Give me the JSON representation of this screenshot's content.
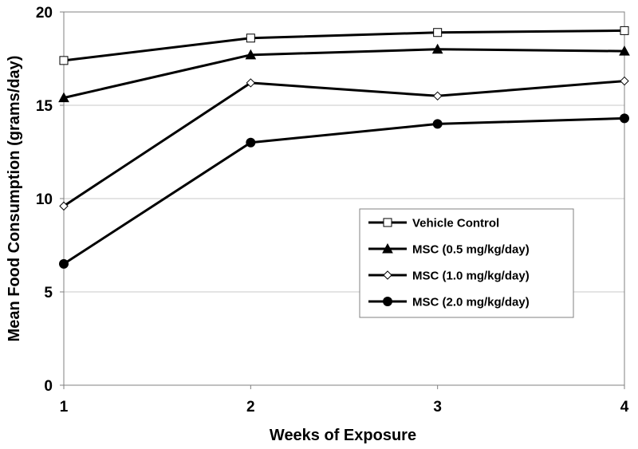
{
  "chart_data": {
    "type": "line",
    "title": "",
    "xlabel": "Weeks of Exposure",
    "ylabel": "Mean Food Consumption (grams/day)",
    "x": [
      1,
      2,
      3,
      4
    ],
    "x_ticks": [
      "1",
      "2",
      "3",
      "4"
    ],
    "xlim": [
      1,
      4
    ],
    "ylim": [
      0,
      20
    ],
    "y_ticks": [
      "0",
      "5",
      "10",
      "15",
      "20"
    ],
    "y_tick_values": [
      0,
      5,
      10,
      15,
      20
    ],
    "grid": "horizontal",
    "legend_position": "lower-right",
    "series": [
      {
        "name": "Vehicle Control",
        "marker": "open-square",
        "values": [
          17.4,
          18.6,
          18.9,
          19.0
        ]
      },
      {
        "name": "MSC (0.5 mg/kg/day)",
        "marker": "filled-triangle",
        "values": [
          15.4,
          17.7,
          18.0,
          17.9
        ]
      },
      {
        "name": "MSC (1.0 mg/kg/day)",
        "marker": "open-diamond",
        "values": [
          9.6,
          16.2,
          15.5,
          16.3
        ]
      },
      {
        "name": "MSC (2.0 mg/kg/day)",
        "marker": "filled-circle",
        "values": [
          6.5,
          13.0,
          14.0,
          14.3
        ]
      }
    ]
  }
}
